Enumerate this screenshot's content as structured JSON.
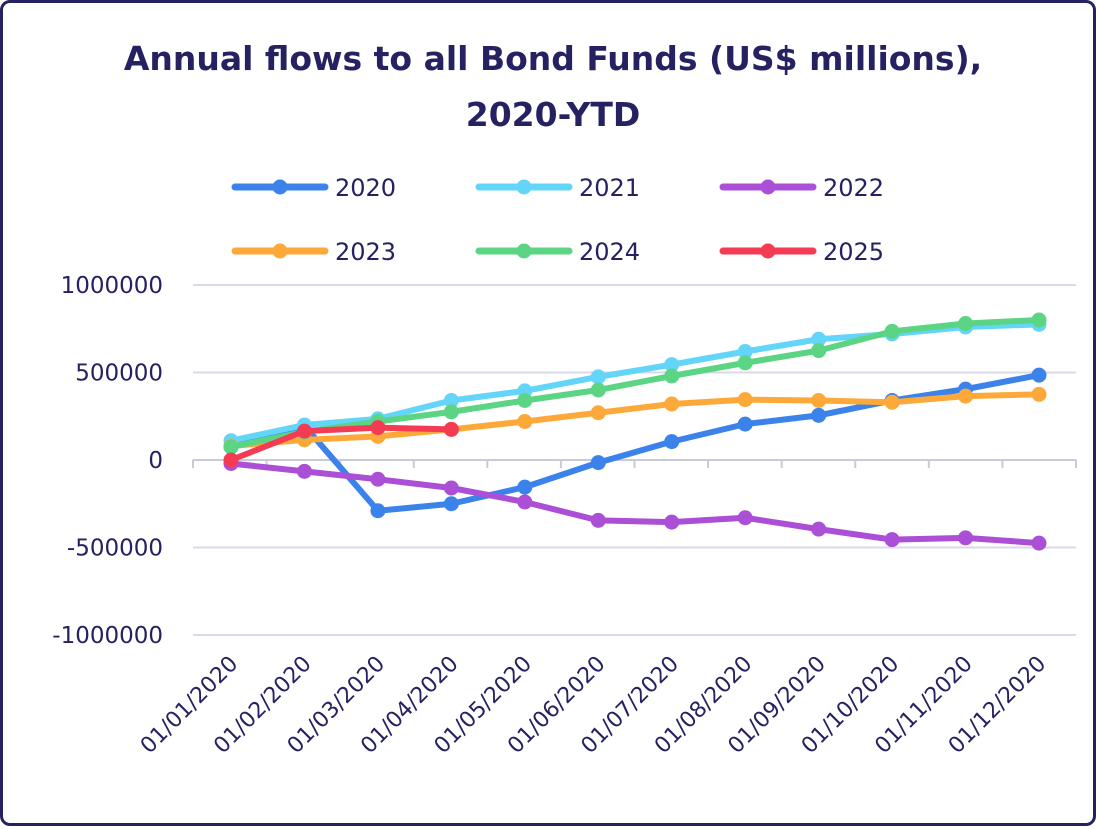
{
  "chart_data": {
    "type": "line",
    "title": "Annual flows to all Bond Funds (US$ millions), 2020-YTD",
    "xlabel": "",
    "ylabel": "",
    "categories": [
      "01/01/2020",
      "01/02/2020",
      "01/03/2020",
      "01/04/2020",
      "01/05/2020",
      "01/06/2020",
      "01/07/2020",
      "01/08/2020",
      "01/09/2020",
      "01/10/2020",
      "01/11/2020",
      "01/12/2020"
    ],
    "ylim": [
      -1000000,
      1000000
    ],
    "yticks": [
      1000000,
      500000,
      0,
      -500000,
      -1000000
    ],
    "ytick_labels": [
      "1000000",
      "500000",
      "0",
      "-500000",
      "-1000000"
    ],
    "grid": true,
    "legend_position": "top",
    "series": [
      {
        "name": "2020",
        "color": "#3B82EB",
        "values": [
          75000,
          195000,
          -290000,
          -250000,
          -155000,
          -15000,
          105000,
          205000,
          255000,
          340000,
          405000,
          485000
        ]
      },
      {
        "name": "2021",
        "color": "#63D5F8",
        "values": [
          110000,
          200000,
          235000,
          340000,
          395000,
          475000,
          545000,
          620000,
          690000,
          720000,
          760000,
          775000
        ]
      },
      {
        "name": "2022",
        "color": "#AB4FD6",
        "values": [
          -20000,
          -65000,
          -110000,
          -160000,
          -240000,
          -345000,
          -355000,
          -330000,
          -395000,
          -455000,
          -445000,
          -475000
        ]
      },
      {
        "name": "2023",
        "color": "#FDA93A",
        "values": [
          80000,
          115000,
          135000,
          175000,
          220000,
          270000,
          320000,
          345000,
          340000,
          330000,
          365000,
          375000
        ]
      },
      {
        "name": "2024",
        "color": "#5BD583",
        "values": [
          75000,
          160000,
          220000,
          275000,
          340000,
          400000,
          480000,
          555000,
          625000,
          735000,
          780000,
          800000
        ]
      },
      {
        "name": "2025",
        "color": "#F43B54",
        "values": [
          0,
          165000,
          185000,
          175000,
          null,
          null,
          null,
          null,
          null,
          null,
          null,
          null
        ]
      }
    ]
  }
}
